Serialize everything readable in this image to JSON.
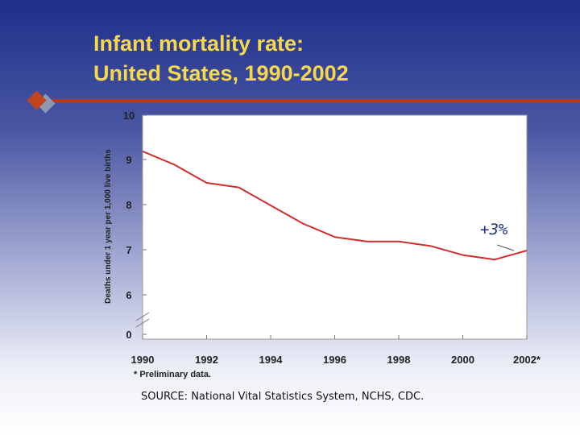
{
  "slide": {
    "title_line1": "Infant mortality rate:",
    "title_line2": "United States, 1990-2002",
    "footnote": "* Preliminary data.",
    "source": "SOURCE: National Vital Statistics System, NCHS, CDC."
  },
  "colors": {
    "title": "#f5d94a",
    "accent_rule": "#b13a20",
    "series_line": "#d22d2d",
    "annotation": "#1f2f8a"
  },
  "chart_data": {
    "type": "line",
    "title": "",
    "xlabel": "",
    "ylabel": "Deaths under 1 year per 1,000 live births",
    "x": [
      1990,
      1991,
      1992,
      1993,
      1994,
      1995,
      1996,
      1997,
      1998,
      1999,
      2000,
      2001,
      2002
    ],
    "xticks": [
      1990,
      1992,
      1994,
      1996,
      1998,
      2000,
      2002
    ],
    "xtick_labels": [
      "1990",
      "1992",
      "1994",
      "1996",
      "1998",
      "2000",
      "2002*"
    ],
    "yticks": [
      0,
      6,
      7,
      8,
      9,
      10
    ],
    "ylim": [
      5.5,
      10
    ],
    "y_axis_break": true,
    "series": [
      {
        "values": [
          9.2,
          8.9,
          8.5,
          8.4,
          8.0,
          7.6,
          7.3,
          7.2,
          7.2,
          7.1,
          6.9,
          6.8,
          7.0
        ]
      }
    ],
    "annotations": [
      {
        "text": "+3%",
        "x": 2002,
        "y": 7.0
      }
    ],
    "grid": false,
    "legend": "none"
  }
}
